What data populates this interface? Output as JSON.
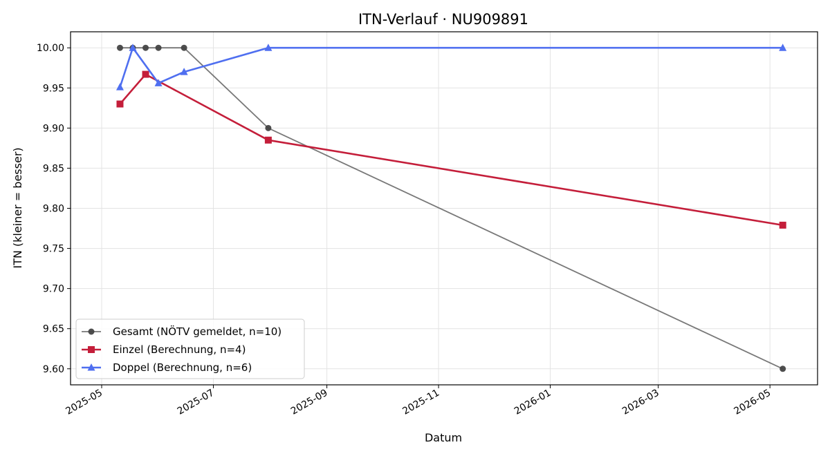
{
  "chart_data": {
    "type": "line",
    "title": "ITN-Verlauf · NU909891",
    "xlabel": "Datum",
    "ylabel": "ITN  (kleiner = besser)",
    "ylim": [
      9.58,
      10.02
    ],
    "xlim": [
      "2025-04-14",
      "2026-05-27"
    ],
    "grid": true,
    "legend_position": "lower-left",
    "x_ticks": [
      "2025-05",
      "2025-07",
      "2025-09",
      "2025-11",
      "2026-01",
      "2026-03",
      "2026-05"
    ],
    "y_ticks": [
      "9.60",
      "9.65",
      "9.70",
      "9.75",
      "9.80",
      "9.85",
      "9.90",
      "9.95",
      "10.00"
    ],
    "series": [
      {
        "name": "Gesamt (NÖTV gemeldet, n=10)",
        "color": "#444444",
        "marker": "circle",
        "points": [
          {
            "x": "2025-05-11",
            "y": 10.0
          },
          {
            "x": "2025-05-18",
            "y": 10.0
          },
          {
            "x": "2025-05-25",
            "y": 10.0
          },
          {
            "x": "2025-06-01",
            "y": 10.0
          },
          {
            "x": "2025-06-15",
            "y": 10.0
          },
          {
            "x": "2025-07-31",
            "y": 9.9
          },
          {
            "x": "2026-05-08",
            "y": 9.6
          }
        ]
      },
      {
        "name": "Einzel (Berechnung, n=4)",
        "color": "#c41e3a",
        "marker": "square",
        "points": [
          {
            "x": "2025-05-11",
            "y": 9.93
          },
          {
            "x": "2025-05-25",
            "y": 9.967
          },
          {
            "x": "2025-07-31",
            "y": 9.885
          },
          {
            "x": "2026-05-08",
            "y": 9.779
          }
        ]
      },
      {
        "name": "Doppel (Berechnung, n=6)",
        "color": "#4f6ff0",
        "marker": "triangle",
        "points": [
          {
            "x": "2025-05-11",
            "y": 9.951
          },
          {
            "x": "2025-05-18",
            "y": 10.0
          },
          {
            "x": "2025-06-01",
            "y": 9.956
          },
          {
            "x": "2025-06-15",
            "y": 9.97
          },
          {
            "x": "2025-07-31",
            "y": 10.0
          },
          {
            "x": "2026-05-08",
            "y": 10.0
          }
        ]
      }
    ]
  }
}
